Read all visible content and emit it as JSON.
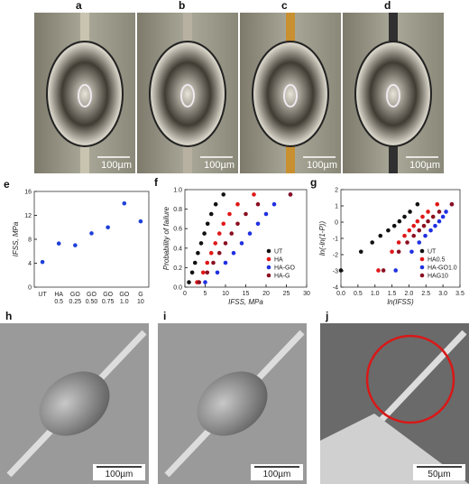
{
  "photos": [
    {
      "label": "a",
      "scale": "100µm"
    },
    {
      "label": "b",
      "scale": "100µm"
    },
    {
      "label": "c",
      "scale": "100µm"
    },
    {
      "label": "d",
      "scale": "100µm"
    }
  ],
  "sem": [
    {
      "label": "h",
      "scale": "100µm"
    },
    {
      "label": "i",
      "scale": "100µm"
    },
    {
      "label": "j",
      "scale": "50µm"
    }
  ],
  "chart_data": [
    {
      "type": "dot",
      "panel": "e",
      "y_label": "IFSS, MPa",
      "categories": [
        [
          "UT"
        ],
        [
          "HA",
          "0.5"
        ],
        [
          "GO",
          "0.25"
        ],
        [
          "GO",
          "0.50"
        ],
        [
          "GO",
          "0.75"
        ],
        [
          "GO",
          "1.0"
        ],
        [
          "G",
          "10"
        ]
      ],
      "values": [
        4.2,
        7.3,
        7.0,
        9.0,
        10.0,
        14.0,
        11.0
      ],
      "color": "#1f3fd8",
      "ylim": [
        0,
        16
      ],
      "yticks": [
        0,
        4,
        8,
        12,
        16
      ]
    },
    {
      "type": "scatter",
      "panel": "f",
      "x_label": "IFSS, MPa",
      "y_label": "Probability of failure",
      "xlim": [
        0,
        30
      ],
      "xticks": [
        0,
        5,
        10,
        15,
        20,
        25,
        30
      ],
      "ylim": [
        0,
        1
      ],
      "yticks": [
        {
          "value": 0,
          "label": "0.0"
        },
        0.2,
        0.4,
        0.6,
        0.8,
        {
          "value": 1,
          "label": "1.0"
        }
      ],
      "legend": "lower-right",
      "series": [
        {
          "name": "UT",
          "color": "#111111",
          "x": [
            1.0,
            1.8,
            2.5,
            3.2,
            4.0,
            4.8,
            5.6,
            6.5,
            7.6,
            9.5
          ],
          "values": [
            0.05,
            0.15,
            0.25,
            0.35,
            0.45,
            0.55,
            0.65,
            0.75,
            0.85,
            0.95
          ]
        },
        {
          "name": "HA",
          "color": "#e01818",
          "x": [
            3.0,
            4.5,
            5.5,
            6.5,
            7.5,
            8.5,
            9.5,
            11,
            13,
            17
          ],
          "values": [
            0.05,
            0.15,
            0.25,
            0.35,
            0.45,
            0.55,
            0.65,
            0.75,
            0.85,
            0.95
          ]
        },
        {
          "name": "HA-GO",
          "color": "#2030e0",
          "x": [
            5,
            8,
            10,
            12,
            14,
            16,
            18,
            20,
            22,
            26
          ],
          "values": [
            0.05,
            0.15,
            0.25,
            0.35,
            0.45,
            0.55,
            0.65,
            0.75,
            0.85,
            0.95
          ]
        },
        {
          "name": "HA-G",
          "color": "#8a1020",
          "x": [
            3.5,
            5.5,
            7,
            8.5,
            10,
            11.5,
            13,
            15,
            18,
            26
          ],
          "values": [
            0.05,
            0.15,
            0.25,
            0.35,
            0.45,
            0.55,
            0.65,
            0.75,
            0.85,
            0.95
          ]
        }
      ]
    },
    {
      "type": "scatter",
      "panel": "g",
      "x_label": "ln(IFSS)",
      "y_label": "ln(-ln(1-P))",
      "xlim": [
        0,
        3.5
      ],
      "xticks": [
        {
          "value": 0,
          "label": "0.0"
        },
        0.5,
        {
          "value": 1,
          "label": "1.0"
        },
        1.5,
        {
          "value": 2,
          "label": "2.0"
        },
        2.5,
        {
          "value": 3,
          "label": "3.0"
        },
        3.5
      ],
      "ylim": [
        -4,
        2
      ],
      "yticks": [
        -4,
        -3,
        -2,
        -1,
        0,
        1,
        2
      ],
      "legend": "lower-right",
      "series": [
        {
          "name": "UT",
          "color": "#111111",
          "x": [
            0,
            0.59,
            0.92,
            1.16,
            1.39,
            1.57,
            1.72,
            1.87,
            2.03,
            2.25
          ],
          "values": [
            -2.97,
            -1.82,
            -1.25,
            -0.84,
            -0.51,
            -0.23,
            0.05,
            0.33,
            0.64,
            1.1
          ]
        },
        {
          "name": "HA0.5",
          "color": "#e01818",
          "x": [
            1.1,
            1.5,
            1.7,
            1.87,
            2.01,
            2.14,
            2.25,
            2.4,
            2.56,
            2.83
          ],
          "values": [
            -2.97,
            -1.82,
            -1.25,
            -0.84,
            -0.51,
            -0.23,
            0.05,
            0.33,
            0.64,
            1.1
          ]
        },
        {
          "name": "HA-GO1.0",
          "color": "#2030e0",
          "x": [
            1.61,
            2.08,
            2.3,
            2.48,
            2.64,
            2.77,
            2.89,
            3.0,
            3.09,
            3.26
          ],
          "values": [
            -2.97,
            -1.82,
            -1.25,
            -0.84,
            -0.51,
            -0.23,
            0.05,
            0.33,
            0.64,
            1.1
          ]
        },
        {
          "name": "HAG10",
          "color": "#8a1020",
          "x": [
            1.25,
            1.7,
            1.95,
            2.14,
            2.3,
            2.44,
            2.56,
            2.71,
            2.89,
            3.26
          ],
          "values": [
            -2.97,
            -1.82,
            -1.25,
            -0.84,
            -0.51,
            -0.23,
            0.05,
            0.33,
            0.64,
            1.1
          ]
        }
      ]
    }
  ]
}
